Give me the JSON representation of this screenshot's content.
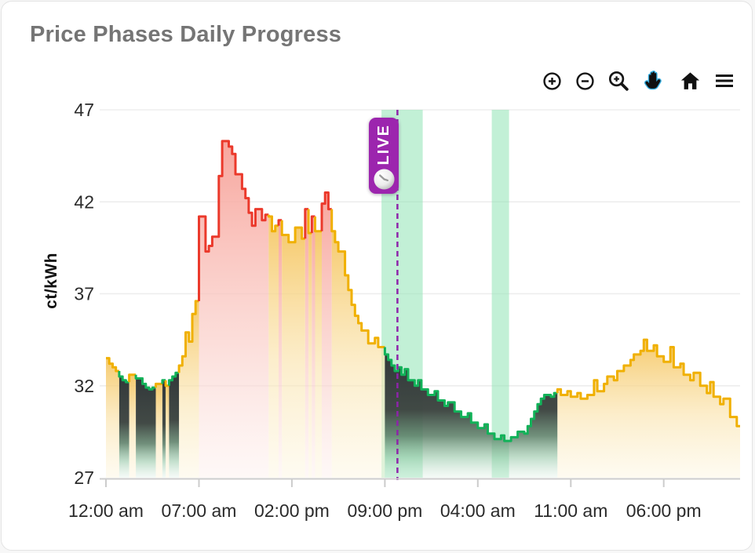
{
  "card": {
    "title": "Price Phases Daily Progress"
  },
  "toolbar": {
    "items": [
      {
        "name": "zoom-in",
        "icon": "circle-plus-icon",
        "active": false
      },
      {
        "name": "zoom-out",
        "icon": "circle-minus-icon",
        "active": false
      },
      {
        "name": "box-zoom",
        "icon": "magnifier-plus-icon",
        "active": false
      },
      {
        "name": "pan",
        "icon": "hand-icon",
        "active": true,
        "active_color": "#35AEE0"
      },
      {
        "name": "reset-view",
        "icon": "home-icon",
        "active": false
      },
      {
        "name": "menu",
        "icon": "hamburger-menu-icon",
        "active": false
      }
    ]
  },
  "chart_data": {
    "type": "area",
    "subtype": "step-area-phases",
    "title": "Price Phases Daily Progress",
    "xlabel": "",
    "ylabel": "ct/kWh",
    "unit": "ct/kWh",
    "ylim": [
      27,
      47
    ],
    "yticks": [
      47,
      42,
      37,
      32,
      27
    ],
    "x_span_hours": 47.75,
    "xticks": [
      {
        "hour": 0,
        "label": "12:00 am"
      },
      {
        "hour": 7,
        "label": "07:00 am"
      },
      {
        "hour": 14,
        "label": "02:00 pm"
      },
      {
        "hour": 21,
        "label": "09:00 pm"
      },
      {
        "hour": 28,
        "label": "04:00 am"
      },
      {
        "hour": 35,
        "label": "11:00 am"
      },
      {
        "hour": 42,
        "label": "06:00 pm"
      }
    ],
    "grid": true,
    "legend": "none",
    "phase_codes": {
      "n": "normal",
      "e": "expensive",
      "c": "cheap"
    },
    "phase_colors": {
      "normal": {
        "line": "#F0B000",
        "fill_top": "#F5C55F",
        "fill_bottom": "#FDF7E3"
      },
      "expensive": {
        "line": "#EB392B",
        "fill_top": "#F7A198",
        "fill_bottom": "#FDF1EF"
      },
      "cheap": {
        "line": "#12B259",
        "fill_top": "#32383A",
        "fill_bottom": "#E2F2E8"
      }
    },
    "highlight_bands": [
      {
        "start": 20.75,
        "end": 23.85,
        "color": "#8FE3B4",
        "meaning": "cheap-window"
      },
      {
        "start": 29.05,
        "end": 30.35,
        "color": "#8FE3B4",
        "meaning": "cheap-window"
      }
    ],
    "live_marker": {
      "hour": 21.95,
      "label": "LIVE",
      "color": "#9C25AE",
      "line_color": "#8E24AA"
    },
    "series": [
      {
        "name": "price",
        "points_format": [
          "hour",
          "ct_per_kWh",
          "phase"
        ],
        "points": [
          [
            0,
            33.5,
            "n"
          ],
          [
            0.25,
            33.2,
            "n"
          ],
          [
            0.5,
            33.0,
            "n"
          ],
          [
            0.75,
            32.8,
            "n"
          ],
          [
            1,
            32.5,
            "c"
          ],
          [
            1.25,
            32.3,
            "c"
          ],
          [
            1.5,
            32.2,
            "c"
          ],
          [
            1.75,
            32.6,
            "n"
          ],
          [
            2.25,
            32.4,
            "c"
          ],
          [
            2.75,
            32.1,
            "c"
          ],
          [
            3,
            31.9,
            "c"
          ],
          [
            3.25,
            31.8,
            "c"
          ],
          [
            3.5,
            31.9,
            "c"
          ],
          [
            3.75,
            32.1,
            "n"
          ],
          [
            4.25,
            32.3,
            "c"
          ],
          [
            4.5,
            32.0,
            "n"
          ],
          [
            4.75,
            32.3,
            "c"
          ],
          [
            5,
            32.5,
            "c"
          ],
          [
            5.25,
            32.7,
            "c"
          ],
          [
            5.5,
            33.1,
            "n"
          ],
          [
            5.75,
            33.6,
            "n"
          ],
          [
            6,
            34.9,
            "n"
          ],
          [
            6.25,
            34.4,
            "n"
          ],
          [
            6.5,
            35.9,
            "n"
          ],
          [
            6.75,
            36.6,
            "n"
          ],
          [
            7,
            41.2,
            "e"
          ],
          [
            7.5,
            39.3,
            "e"
          ],
          [
            7.75,
            39.6,
            "e"
          ],
          [
            8,
            40.1,
            "e"
          ],
          [
            8.5,
            43.4,
            "e"
          ],
          [
            8.75,
            45.3,
            "e"
          ],
          [
            9.25,
            45.0,
            "e"
          ],
          [
            9.5,
            44.6,
            "e"
          ],
          [
            9.75,
            43.5,
            "e"
          ],
          [
            10.25,
            42.7,
            "e"
          ],
          [
            10.5,
            42.2,
            "e"
          ],
          [
            10.75,
            41.4,
            "e"
          ],
          [
            11,
            40.7,
            "e"
          ],
          [
            11.25,
            41.6,
            "e"
          ],
          [
            11.75,
            41.0,
            "e"
          ],
          [
            12,
            41.3,
            "e"
          ],
          [
            12.25,
            41.2,
            "n"
          ],
          [
            12.5,
            40.4,
            "n"
          ],
          [
            12.75,
            40.7,
            "n"
          ],
          [
            13,
            41.0,
            "e"
          ],
          [
            13.25,
            40.2,
            "n"
          ],
          [
            13.75,
            39.8,
            "n"
          ],
          [
            14.25,
            40.6,
            "n"
          ],
          [
            14.75,
            40.0,
            "n"
          ],
          [
            15,
            41.6,
            "e"
          ],
          [
            15.25,
            40.3,
            "n"
          ],
          [
            15.5,
            41.2,
            "e"
          ],
          [
            15.75,
            40.4,
            "n"
          ],
          [
            16.25,
            41.9,
            "e"
          ],
          [
            16.5,
            42.5,
            "e"
          ],
          [
            16.75,
            41.6,
            "e"
          ],
          [
            17,
            40.4,
            "n"
          ],
          [
            17.25,
            39.8,
            "n"
          ],
          [
            17.5,
            39.3,
            "n"
          ],
          [
            18,
            38.0,
            "n"
          ],
          [
            18.25,
            37.2,
            "n"
          ],
          [
            18.5,
            36.4,
            "n"
          ],
          [
            18.75,
            35.8,
            "n"
          ],
          [
            19,
            35.4,
            "n"
          ],
          [
            19.25,
            35.0,
            "n"
          ],
          [
            19.75,
            34.3,
            "n"
          ],
          [
            20.25,
            34.6,
            "n"
          ],
          [
            20.5,
            34.1,
            "n"
          ],
          [
            21,
            33.7,
            "c"
          ],
          [
            21.25,
            33.4,
            "c"
          ],
          [
            21.5,
            33.1,
            "c"
          ],
          [
            21.75,
            32.8,
            "c"
          ],
          [
            22,
            33.0,
            "c"
          ],
          [
            22.25,
            32.6,
            "c"
          ],
          [
            22.5,
            32.9,
            "c"
          ],
          [
            22.75,
            32.3,
            "c"
          ],
          [
            23.25,
            32.0,
            "c"
          ],
          [
            23.5,
            32.3,
            "c"
          ],
          [
            23.75,
            31.8,
            "c"
          ],
          [
            24.25,
            31.5,
            "c"
          ],
          [
            24.75,
            31.7,
            "c"
          ],
          [
            25,
            31.2,
            "c"
          ],
          [
            25.5,
            30.9,
            "c"
          ],
          [
            25.75,
            31.1,
            "c"
          ],
          [
            26.25,
            30.6,
            "c"
          ],
          [
            26.75,
            30.3,
            "c"
          ],
          [
            27.25,
            30.5,
            "c"
          ],
          [
            27.5,
            30.0,
            "c"
          ],
          [
            28,
            29.7,
            "c"
          ],
          [
            28.5,
            29.9,
            "c"
          ],
          [
            28.75,
            29.4,
            "c"
          ],
          [
            29.25,
            29.1,
            "c"
          ],
          [
            29.75,
            29.3,
            "c"
          ],
          [
            30,
            29.0,
            "c"
          ],
          [
            30.5,
            29.2,
            "c"
          ],
          [
            31,
            29.5,
            "c"
          ],
          [
            31.5,
            29.4,
            "c"
          ],
          [
            31.75,
            29.8,
            "c"
          ],
          [
            32,
            30.2,
            "c"
          ],
          [
            32.25,
            30.6,
            "c"
          ],
          [
            32.5,
            31.0,
            "c"
          ],
          [
            32.75,
            31.3,
            "c"
          ],
          [
            33,
            31.5,
            "c"
          ],
          [
            33.5,
            31.4,
            "c"
          ],
          [
            33.75,
            31.6,
            "c"
          ],
          [
            34,
            31.8,
            "n"
          ],
          [
            34.25,
            31.5,
            "n"
          ],
          [
            34.75,
            31.7,
            "n"
          ],
          [
            35,
            31.4,
            "n"
          ],
          [
            35.5,
            31.6,
            "n"
          ],
          [
            35.75,
            31.3,
            "n"
          ],
          [
            36.25,
            31.5,
            "n"
          ],
          [
            36.75,
            32.3,
            "n"
          ],
          [
            37,
            31.7,
            "n"
          ],
          [
            37.5,
            32.1,
            "n"
          ],
          [
            37.75,
            32.5,
            "n"
          ],
          [
            38.25,
            32.3,
            "n"
          ],
          [
            38.5,
            32.8,
            "n"
          ],
          [
            39,
            33.1,
            "n"
          ],
          [
            39.5,
            33.4,
            "n"
          ],
          [
            39.75,
            33.7,
            "n"
          ],
          [
            40.25,
            33.9,
            "n"
          ],
          [
            40.5,
            34.5,
            "n"
          ],
          [
            40.75,
            33.9,
            "n"
          ],
          [
            41.25,
            34.2,
            "n"
          ],
          [
            41.5,
            33.6,
            "n"
          ],
          [
            42,
            33.3,
            "n"
          ],
          [
            42.5,
            34.1,
            "n"
          ],
          [
            42.75,
            33.0,
            "n"
          ],
          [
            43.25,
            33.2,
            "n"
          ],
          [
            43.5,
            32.6,
            "n"
          ],
          [
            44,
            32.3,
            "n"
          ],
          [
            44.25,
            32.7,
            "n"
          ],
          [
            44.75,
            32.0,
            "n"
          ],
          [
            45.25,
            31.6,
            "n"
          ],
          [
            45.5,
            32.2,
            "n"
          ],
          [
            45.75,
            31.4,
            "n"
          ],
          [
            46.25,
            31.0,
            "n"
          ],
          [
            46.5,
            31.3,
            "n"
          ],
          [
            47,
            30.3,
            "n"
          ],
          [
            47.5,
            29.8,
            "n"
          ]
        ]
      }
    ]
  }
}
